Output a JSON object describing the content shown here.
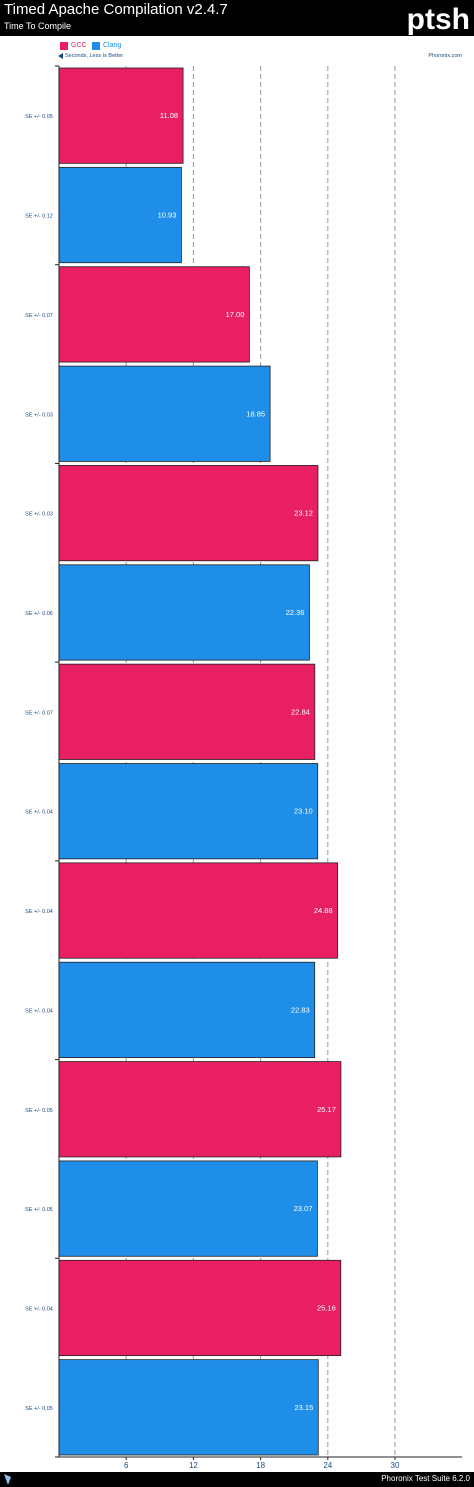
{
  "header": {
    "title": "Timed Apache Compilation v2.4.7",
    "subtitle": "Time To Compile",
    "logo_text": "ptsh"
  },
  "legend": {
    "items": [
      {
        "label": "GCC",
        "color": "#e81f62"
      },
      {
        "label": "Clang",
        "color": "#1f8ee8"
      }
    ]
  },
  "direction_note": "Seconds, Less Is Better",
  "source_note": "Phoronix.com",
  "footer": {
    "text": "Phoronix Test Suite 6.2.0"
  },
  "chart_data": {
    "type": "bar",
    "orientation": "horizontal",
    "title": "Timed Apache Compilation v2.4.7",
    "subtitle": "Time To Compile",
    "xlabel": "",
    "ylabel": "",
    "unit": "Seconds",
    "xlim": [
      0,
      36
    ],
    "ticks": [
      6,
      12,
      18,
      24,
      30
    ],
    "tick_labels": [
      "6",
      "12",
      "18",
      "24",
      "30"
    ],
    "grid": true,
    "legend_position": "top-left",
    "series_colors": {
      "GCC": "#e81f62",
      "Clang": "#1f8ee8"
    },
    "bars": [
      {
        "series": "GCC",
        "value": 11.08,
        "label": "11.08",
        "se": "SE +/- 0.05"
      },
      {
        "series": "Clang",
        "value": 10.93,
        "label": "10.93",
        "se": "SE +/- 0.12"
      },
      {
        "series": "GCC",
        "value": 17.0,
        "label": "17.00",
        "se": "SE +/- 0.07"
      },
      {
        "series": "Clang",
        "value": 18.85,
        "label": "18.85",
        "se": "SE +/- 0.03"
      },
      {
        "series": "GCC",
        "value": 23.12,
        "label": "23.12",
        "se": "SE +/- 0.03"
      },
      {
        "series": "Clang",
        "value": 22.36,
        "label": "22.36",
        "se": "SE +/- 0.06"
      },
      {
        "series": "GCC",
        "value": 22.84,
        "label": "22.84",
        "se": "SE +/- 0.07"
      },
      {
        "series": "Clang",
        "value": 23.1,
        "label": "23.10",
        "se": "SE +/- 0.04"
      },
      {
        "series": "GCC",
        "value": 24.88,
        "label": "24.88",
        "se": "SE +/- 0.04"
      },
      {
        "series": "Clang",
        "value": 22.83,
        "label": "22.83",
        "se": "SE +/- 0.04"
      },
      {
        "series": "GCC",
        "value": 25.17,
        "label": "25.17",
        "se": "SE +/- 0.05"
      },
      {
        "series": "Clang",
        "value": 23.07,
        "label": "23.07",
        "se": "SE +/- 0.05"
      },
      {
        "series": "GCC",
        "value": 25.16,
        "label": "25.16",
        "se": "SE +/- 0.04"
      },
      {
        "series": "Clang",
        "value": 23.15,
        "label": "23.15",
        "se": "SE +/- 0.05"
      }
    ]
  }
}
